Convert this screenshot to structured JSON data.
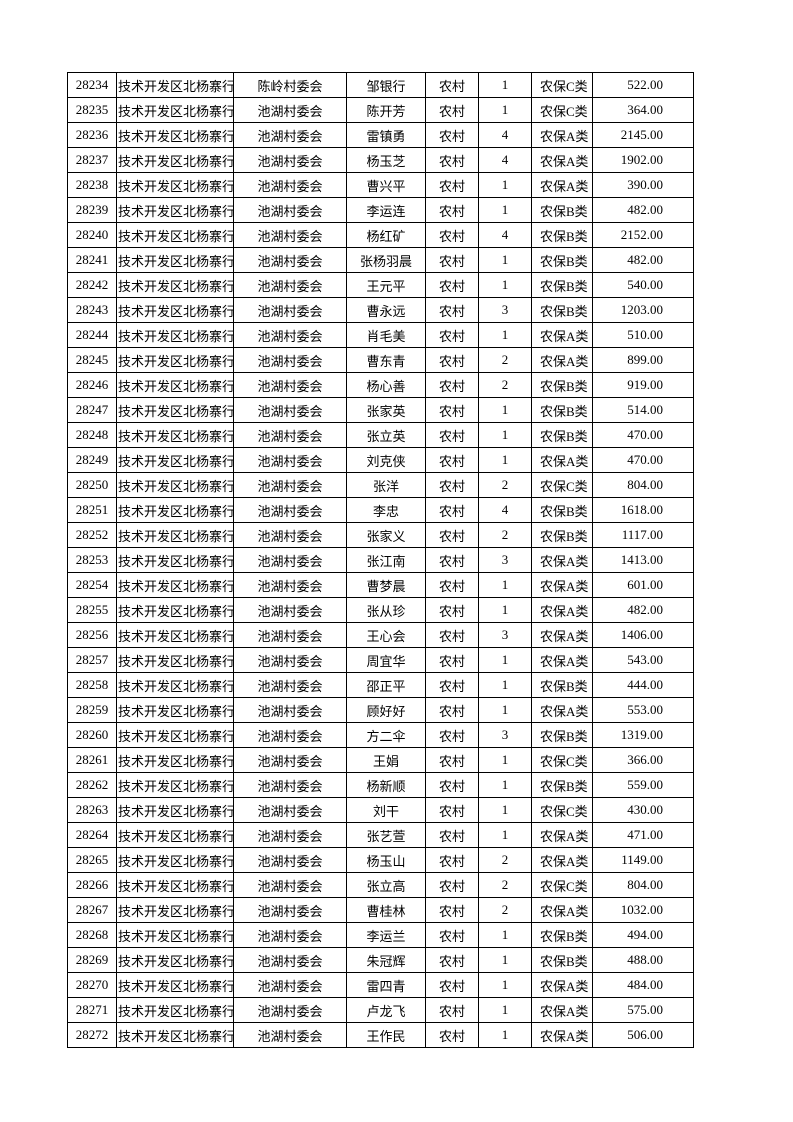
{
  "table": {
    "rows": [
      [
        "28234",
        "技术开发区北杨寨行",
        "陈岭村委会",
        "邹银行",
        "农村",
        "1",
        "农保C类",
        "522.00"
      ],
      [
        "28235",
        "技术开发区北杨寨行",
        "池湖村委会",
        "陈开芳",
        "农村",
        "1",
        "农保C类",
        "364.00"
      ],
      [
        "28236",
        "技术开发区北杨寨行",
        "池湖村委会",
        "雷镇勇",
        "农村",
        "4",
        "农保A类",
        "2145.00"
      ],
      [
        "28237",
        "技术开发区北杨寨行",
        "池湖村委会",
        "杨玉芝",
        "农村",
        "4",
        "农保A类",
        "1902.00"
      ],
      [
        "28238",
        "技术开发区北杨寨行",
        "池湖村委会",
        "曹兴平",
        "农村",
        "1",
        "农保A类",
        "390.00"
      ],
      [
        "28239",
        "技术开发区北杨寨行",
        "池湖村委会",
        "李运连",
        "农村",
        "1",
        "农保B类",
        "482.00"
      ],
      [
        "28240",
        "技术开发区北杨寨行",
        "池湖村委会",
        "杨红矿",
        "农村",
        "4",
        "农保B类",
        "2152.00"
      ],
      [
        "28241",
        "技术开发区北杨寨行",
        "池湖村委会",
        "张杨羽晨",
        "农村",
        "1",
        "农保B类",
        "482.00"
      ],
      [
        "28242",
        "技术开发区北杨寨行",
        "池湖村委会",
        "王元平",
        "农村",
        "1",
        "农保B类",
        "540.00"
      ],
      [
        "28243",
        "技术开发区北杨寨行",
        "池湖村委会",
        "曹永远",
        "农村",
        "3",
        "农保B类",
        "1203.00"
      ],
      [
        "28244",
        "技术开发区北杨寨行",
        "池湖村委会",
        "肖毛美",
        "农村",
        "1",
        "农保A类",
        "510.00"
      ],
      [
        "28245",
        "技术开发区北杨寨行",
        "池湖村委会",
        "曹东青",
        "农村",
        "2",
        "农保A类",
        "899.00"
      ],
      [
        "28246",
        "技术开发区北杨寨行",
        "池湖村委会",
        "杨心善",
        "农村",
        "2",
        "农保B类",
        "919.00"
      ],
      [
        "28247",
        "技术开发区北杨寨行",
        "池湖村委会",
        "张家英",
        "农村",
        "1",
        "农保B类",
        "514.00"
      ],
      [
        "28248",
        "技术开发区北杨寨行",
        "池湖村委会",
        "张立英",
        "农村",
        "1",
        "农保B类",
        "470.00"
      ],
      [
        "28249",
        "技术开发区北杨寨行",
        "池湖村委会",
        "刘克侠",
        "农村",
        "1",
        "农保A类",
        "470.00"
      ],
      [
        "28250",
        "技术开发区北杨寨行",
        "池湖村委会",
        "张洋",
        "农村",
        "2",
        "农保C类",
        "804.00"
      ],
      [
        "28251",
        "技术开发区北杨寨行",
        "池湖村委会",
        "李忠",
        "农村",
        "4",
        "农保B类",
        "1618.00"
      ],
      [
        "28252",
        "技术开发区北杨寨行",
        "池湖村委会",
        "张家义",
        "农村",
        "2",
        "农保B类",
        "1117.00"
      ],
      [
        "28253",
        "技术开发区北杨寨行",
        "池湖村委会",
        "张江南",
        "农村",
        "3",
        "农保A类",
        "1413.00"
      ],
      [
        "28254",
        "技术开发区北杨寨行",
        "池湖村委会",
        "曹梦晨",
        "农村",
        "1",
        "农保A类",
        "601.00"
      ],
      [
        "28255",
        "技术开发区北杨寨行",
        "池湖村委会",
        "张从珍",
        "农村",
        "1",
        "农保A类",
        "482.00"
      ],
      [
        "28256",
        "技术开发区北杨寨行",
        "池湖村委会",
        "王心会",
        "农村",
        "3",
        "农保A类",
        "1406.00"
      ],
      [
        "28257",
        "技术开发区北杨寨行",
        "池湖村委会",
        "周宜华",
        "农村",
        "1",
        "农保A类",
        "543.00"
      ],
      [
        "28258",
        "技术开发区北杨寨行",
        "池湖村委会",
        "邵正平",
        "农村",
        "1",
        "农保B类",
        "444.00"
      ],
      [
        "28259",
        "技术开发区北杨寨行",
        "池湖村委会",
        "顾好好",
        "农村",
        "1",
        "农保A类",
        "553.00"
      ],
      [
        "28260",
        "技术开发区北杨寨行",
        "池湖村委会",
        "方二伞",
        "农村",
        "3",
        "农保B类",
        "1319.00"
      ],
      [
        "28261",
        "技术开发区北杨寨行",
        "池湖村委会",
        "王娟",
        "农村",
        "1",
        "农保C类",
        "366.00"
      ],
      [
        "28262",
        "技术开发区北杨寨行",
        "池湖村委会",
        "杨新顺",
        "农村",
        "1",
        "农保B类",
        "559.00"
      ],
      [
        "28263",
        "技术开发区北杨寨行",
        "池湖村委会",
        "刘干",
        "农村",
        "1",
        "农保C类",
        "430.00"
      ],
      [
        "28264",
        "技术开发区北杨寨行",
        "池湖村委会",
        "张艺萱",
        "农村",
        "1",
        "农保A类",
        "471.00"
      ],
      [
        "28265",
        "技术开发区北杨寨行",
        "池湖村委会",
        "杨玉山",
        "农村",
        "2",
        "农保A类",
        "1149.00"
      ],
      [
        "28266",
        "技术开发区北杨寨行",
        "池湖村委会",
        "张立高",
        "农村",
        "2",
        "农保C类",
        "804.00"
      ],
      [
        "28267",
        "技术开发区北杨寨行",
        "池湖村委会",
        "曹桂林",
        "农村",
        "2",
        "农保A类",
        "1032.00"
      ],
      [
        "28268",
        "技术开发区北杨寨行",
        "池湖村委会",
        "李运兰",
        "农村",
        "1",
        "农保B类",
        "494.00"
      ],
      [
        "28269",
        "技术开发区北杨寨行",
        "池湖村委会",
        "朱冠辉",
        "农村",
        "1",
        "农保B类",
        "488.00"
      ],
      [
        "28270",
        "技术开发区北杨寨行",
        "池湖村委会",
        "雷四青",
        "农村",
        "1",
        "农保A类",
        "484.00"
      ],
      [
        "28271",
        "技术开发区北杨寨行",
        "池湖村委会",
        "卢龙飞",
        "农村",
        "1",
        "农保A类",
        "575.00"
      ],
      [
        "28272",
        "技术开发区北杨寨行",
        "池湖村委会",
        "王作民",
        "农村",
        "1",
        "农保A类",
        "506.00"
      ]
    ]
  }
}
